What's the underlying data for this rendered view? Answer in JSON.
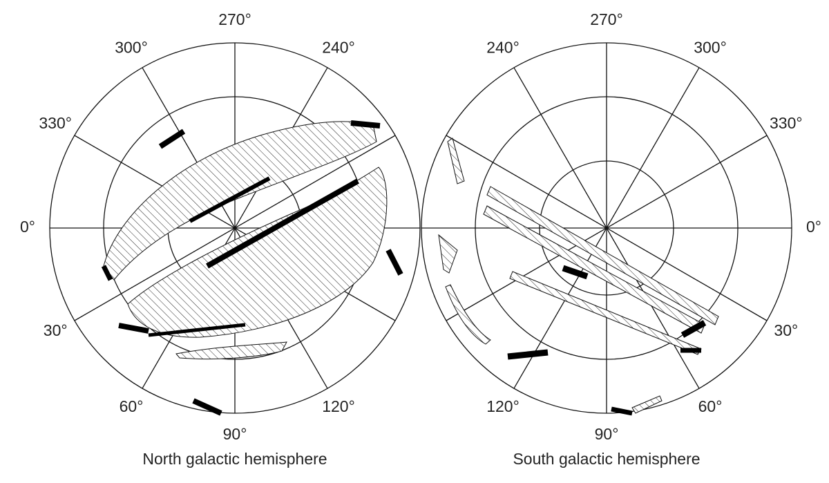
{
  "north": {
    "title": "North galactic hemisphere",
    "angle_labels": [
      "0°",
      "30°",
      "60°",
      "90°",
      "120°",
      "240°",
      "270°",
      "300°",
      "330°"
    ]
  },
  "south": {
    "title": "South galactic hemisphere",
    "angle_labels": [
      "0°",
      "30°",
      "60°",
      "90°",
      "120°",
      "240°",
      "270°",
      "300°",
      "330°"
    ]
  }
}
